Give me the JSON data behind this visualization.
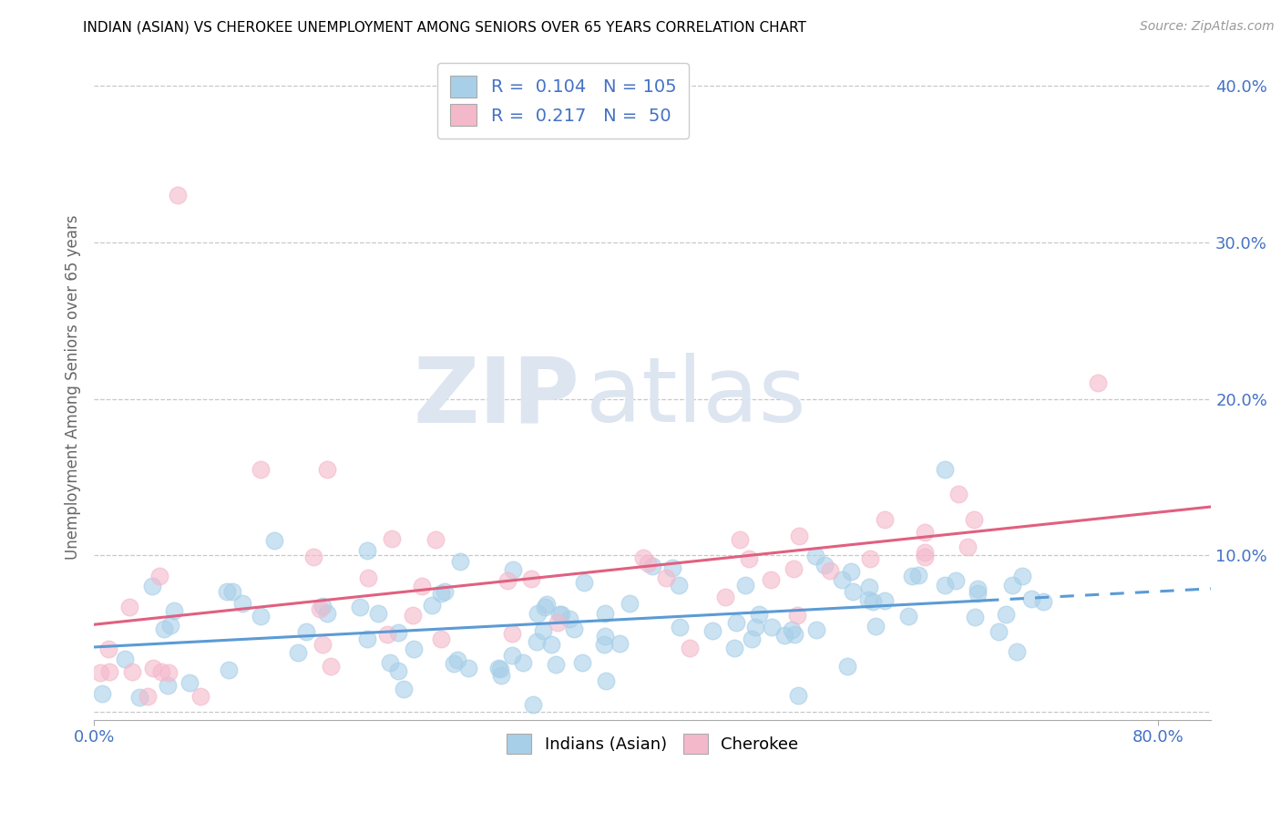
{
  "title": "INDIAN (ASIAN) VS CHEROKEE UNEMPLOYMENT AMONG SENIORS OVER 65 YEARS CORRELATION CHART",
  "source": "Source: ZipAtlas.com",
  "ylabel_label": "Unemployment Among Seniors over 65 years",
  "xlim": [
    0.0,
    0.84
  ],
  "ylim": [
    -0.005,
    0.42
  ],
  "yticks": [
    0.0,
    0.1,
    0.2,
    0.3,
    0.4
  ],
  "ytick_labels": [
    "",
    "10.0%",
    "20.0%",
    "30.0%",
    "40.0%"
  ],
  "xticks": [
    0.0,
    0.8
  ],
  "xtick_labels": [
    "0.0%",
    "80.0%"
  ],
  "legend_R1": "0.104",
  "legend_N1": "105",
  "legend_R2": "0.217",
  "legend_N2": "50",
  "blue_color": "#a8cfe8",
  "pink_color": "#f4b8cb",
  "trend_blue_solid": "#5b9bd5",
  "trend_blue_dash": "#5b9bd5",
  "trend_pink": "#e06080",
  "tick_label_color": "#4472c4",
  "watermark_color": "#e8edf5"
}
